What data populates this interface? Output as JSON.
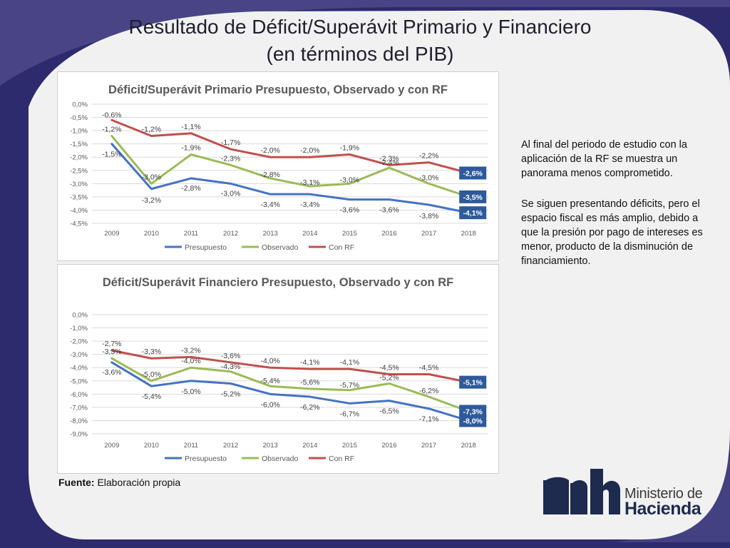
{
  "slide": {
    "title_line1": "Resultado de Déficit/Superávit Primario y Financiero",
    "title_line2": "(en términos del PIB)",
    "paragraph1": "Al final del periodo de estudio con  la aplicación de la RF se muestra un panorama menos comprometido.",
    "paragraph2": "Se siguen presentando déficits, pero el espacio fiscal es más amplio, debido a que la presión por pago de intereses es menor, producto de la disminución de financiamiento.",
    "source_label": "Fuente:",
    "source_text": " Elaboración propia",
    "logo_line1": "Ministerio de",
    "logo_line2": "Hacienda"
  },
  "colors": {
    "presupuesto": "#4472c4",
    "observado": "#9bbb59",
    "con_rf": "#c0504d",
    "label_box": "#2e5a9c"
  },
  "chart_data": [
    {
      "type": "line",
      "title": "Déficit/Superávit Primario Presupuesto, Observado y con RF",
      "categories": [
        "2009",
        "2010",
        "2011",
        "2012",
        "2013",
        "2014",
        "2015",
        "2016",
        "2017",
        "2018"
      ],
      "yticks": [
        "0,0%",
        "-0,5%",
        "-1,0%",
        "-1,5%",
        "-2,0%",
        "-2,5%",
        "-3,0%",
        "-3,5%",
        "-4,0%",
        "-4,5%"
      ],
      "ylim": [
        -4.5,
        0
      ],
      "legend_position": "bottom",
      "grid": true,
      "series": [
        {
          "name": "Presupuesto",
          "values": [
            -1.5,
            -3.2,
            -2.8,
            -3.0,
            -3.4,
            -3.4,
            -3.6,
            -3.6,
            -3.8,
            -4.1
          ],
          "labels": [
            "-1,5%",
            "-3,2%",
            "-2,8%",
            "-3,0%",
            "-3,4%",
            "-3,4%",
            "-3,6%",
            "-3,6%",
            "-3,8%",
            "-4,1%"
          ]
        },
        {
          "name": "Observado",
          "values": [
            -1.2,
            -3.0,
            -1.9,
            -2.3,
            -2.8,
            -3.1,
            -3.0,
            -2.4,
            -3.0,
            -3.5
          ],
          "labels": [
            "-1,2%",
            "-3,0%",
            "-1,9%",
            "-2,3%",
            "-2,8%",
            "-3,1%",
            "-3,0%",
            "-2,4%",
            "-3,0%",
            "-3,5%"
          ]
        },
        {
          "name": "Con RF",
          "values": [
            -0.6,
            -1.2,
            -1.1,
            -1.7,
            -2.0,
            -2.0,
            -1.9,
            -2.3,
            -2.2,
            -2.6
          ],
          "labels": [
            "-0,6%",
            "-1,2%",
            "-1,1%",
            "-1,7%",
            "-2,0%",
            "-2,0%",
            "-1,9%",
            "-2,3%",
            "-2,2%",
            "-2,6%"
          ]
        }
      ]
    },
    {
      "type": "line",
      "title": "Déficit/Superávit Financiero Presupuesto, Observado y con RF",
      "categories": [
        "2009",
        "2010",
        "2011",
        "2012",
        "2013",
        "2014",
        "2015",
        "2016",
        "2017",
        "2018"
      ],
      "yticks": [
        "0,0%",
        "-1,0%",
        "-2,0%",
        "-3,0%",
        "-4,0%",
        "-5,0%",
        "-6,0%",
        "-7,0%",
        "-8,0%",
        "-9,0%"
      ],
      "ylim": [
        -9,
        0
      ],
      "legend_position": "bottom",
      "grid": true,
      "series": [
        {
          "name": "Presupuesto",
          "values": [
            -3.6,
            -5.4,
            -5.0,
            -5.2,
            -6.0,
            -6.2,
            -6.7,
            -6.5,
            -7.1,
            -8.0
          ],
          "labels": [
            "-3,6%",
            "-5,4%",
            "-5,0%",
            "-5,2%",
            "-6,0%",
            "-6,2%",
            "-6,7%",
            "-6,5%",
            "-7,1%",
            "-8,0%"
          ]
        },
        {
          "name": "Observado",
          "values": [
            -3.3,
            -5.0,
            -4.0,
            -4.3,
            -5.4,
            -5.6,
            -5.7,
            -5.2,
            -6.2,
            -7.3
          ],
          "labels": [
            "-3,3%",
            "-5,0%",
            "-4,0%",
            "-4,3%",
            "-5,4%",
            "-5,6%",
            "-5,7%",
            "-5,2%",
            "-6,2%",
            "-7,3%"
          ]
        },
        {
          "name": "Con RF",
          "values": [
            -2.7,
            -3.3,
            -3.2,
            -3.6,
            -4.0,
            -4.1,
            -4.1,
            -4.5,
            -4.5,
            -5.1
          ],
          "labels": [
            "-2,7%",
            "-3,3%",
            "-3,2%",
            "-3,6%",
            "-4,0%",
            "-4,1%",
            "-4,1%",
            "-4,5%",
            "-4,5%",
            "-5,1%"
          ]
        }
      ]
    }
  ]
}
